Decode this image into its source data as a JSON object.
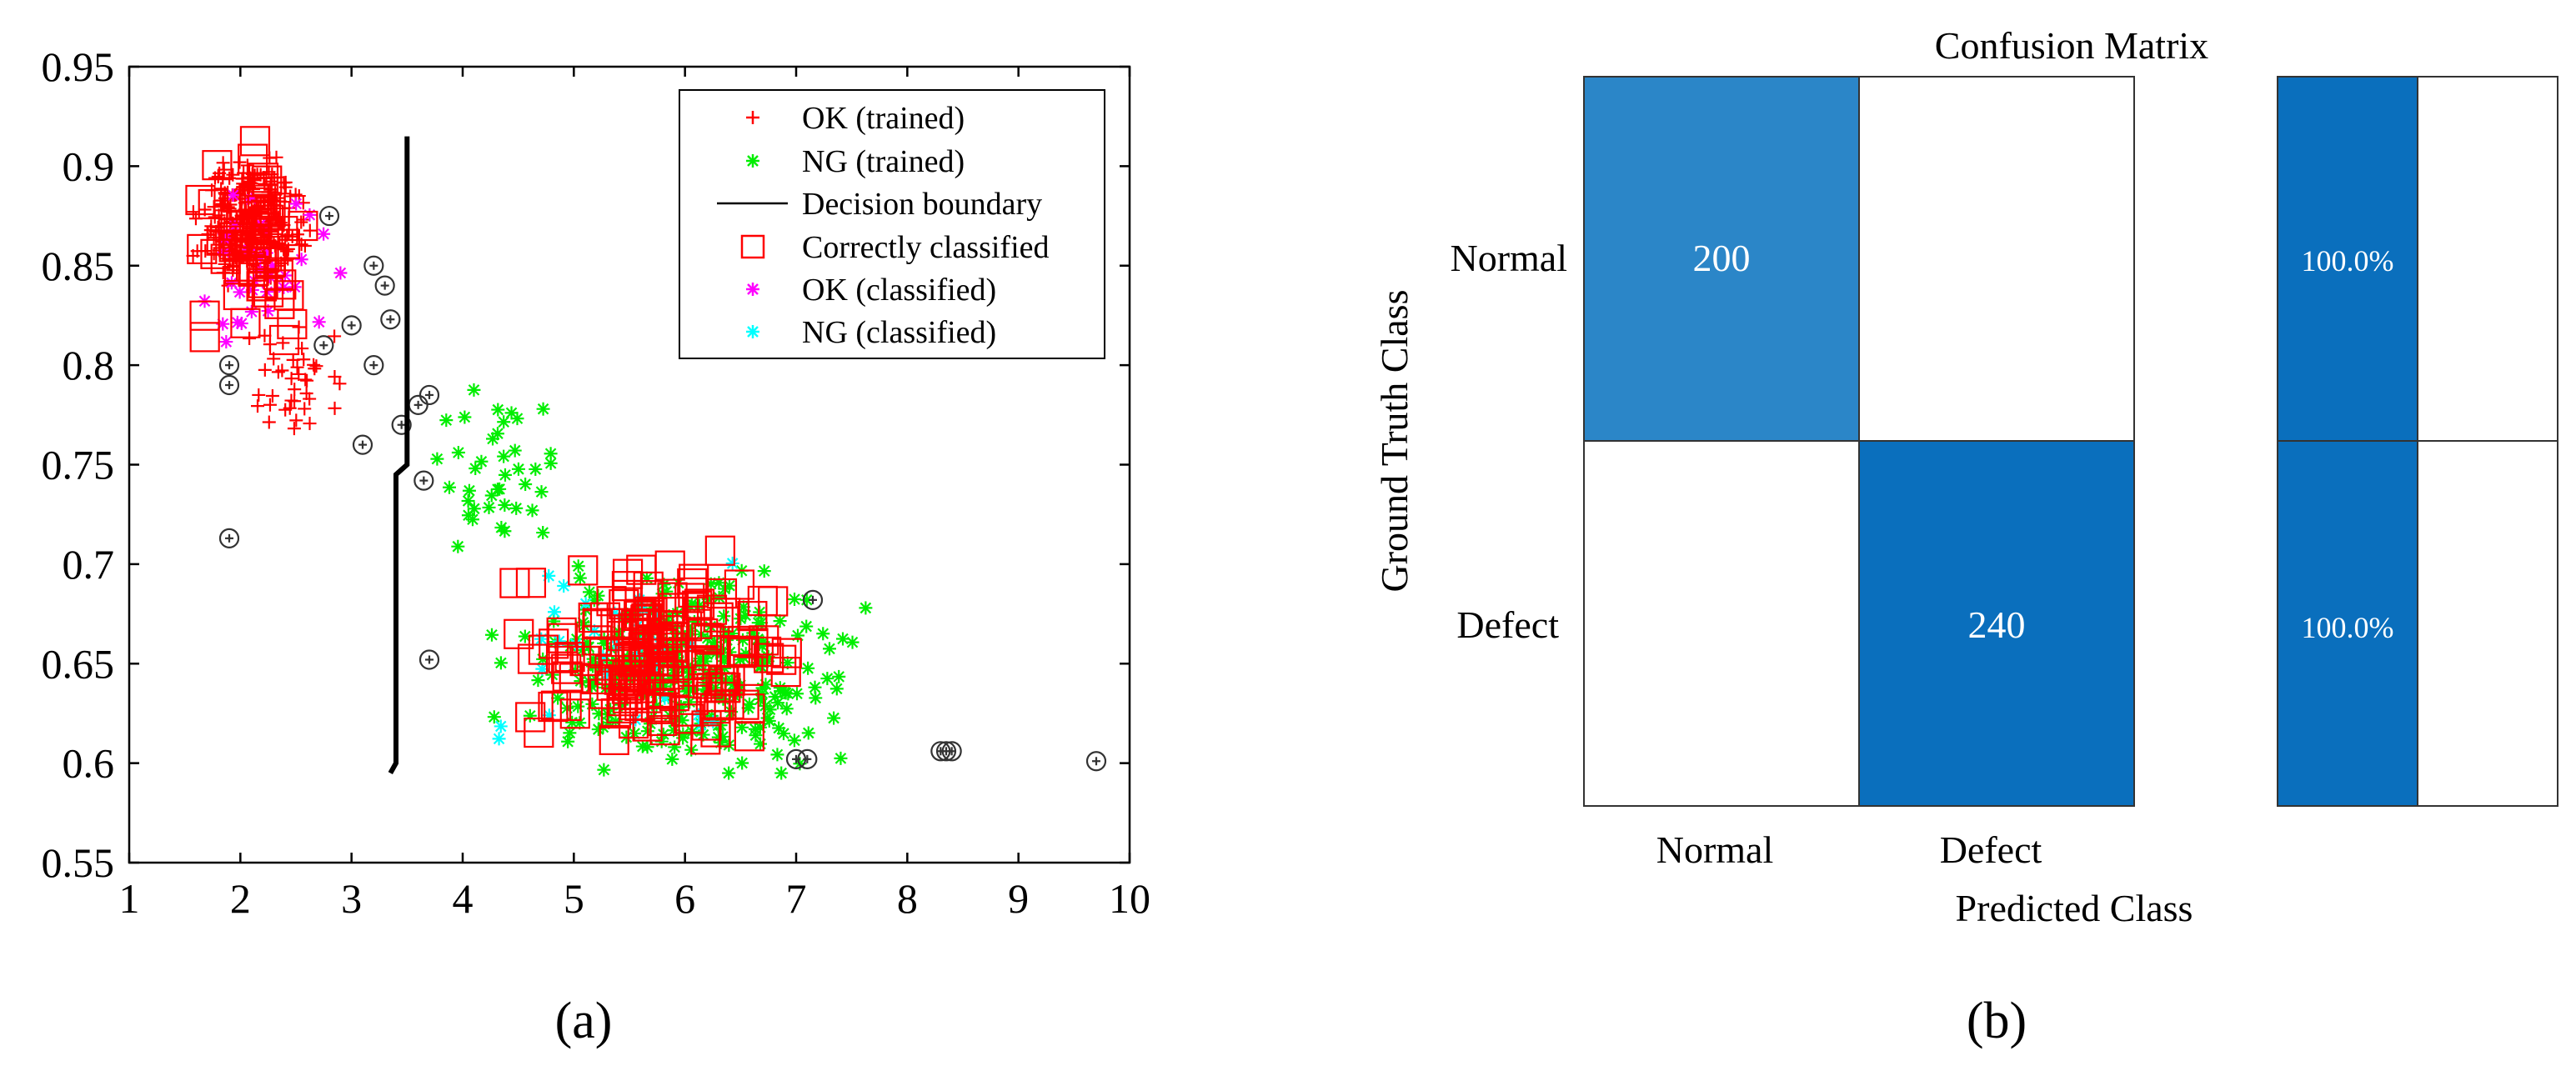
{
  "chart_data": [
    {
      "type": "scatter",
      "panel_label": "(a)",
      "xlim": [
        1,
        10
      ],
      "ylim": [
        0.55,
        0.95
      ],
      "x_ticks": [
        "1",
        "2",
        "3",
        "4",
        "5",
        "6",
        "7",
        "8",
        "9",
        "10"
      ],
      "y_ticks": [
        "0.55",
        "0.6",
        "0.65",
        "0.7",
        "0.75",
        "0.8",
        "0.85",
        "0.9",
        "0.95"
      ],
      "legend": [
        {
          "label": "OK (trained)",
          "marker": "plus",
          "color": "#ff0000"
        },
        {
          "label": "NG (trained)",
          "marker": "star",
          "color": "#00ee00"
        },
        {
          "label": "Decision boundary",
          "marker": "line",
          "color": "#000000"
        },
        {
          "label": "Correctly classified",
          "marker": "square",
          "color": "#ff0000"
        },
        {
          "label": "OK (classified)",
          "marker": "star",
          "color": "#ff00ff"
        },
        {
          "label": "NG (classified)",
          "marker": "star",
          "color": "#00ffff"
        }
      ],
      "clusters": [
        {
          "name": "OK (trained)",
          "center": [
            2.1,
            0.875
          ],
          "spread": [
            0.35,
            0.025
          ],
          "count": 230
        },
        {
          "name": "OK (trained)",
          "center": [
            2.5,
            0.79
          ],
          "spread": [
            0.35,
            0.025
          ],
          "count": 40
        },
        {
          "name": "NG (trained)",
          "center": [
            6.0,
            0.645
          ],
          "spread": [
            1.1,
            0.035
          ],
          "count": 320
        },
        {
          "name": "NG (trained)",
          "center": [
            4.3,
            0.74
          ],
          "spread": [
            0.45,
            0.04
          ],
          "count": 40
        },
        {
          "name": "Correctly classified (OK)",
          "center": [
            2.1,
            0.86
          ],
          "spread": [
            0.4,
            0.03
          ],
          "count": 60
        },
        {
          "name": "Correctly classified (NG)",
          "center": [
            5.8,
            0.655
          ],
          "spread": [
            0.9,
            0.035
          ],
          "count": 180
        },
        {
          "name": "OK (classified)",
          "center": [
            2.2,
            0.85
          ],
          "spread": [
            0.45,
            0.035
          ],
          "count": 35
        },
        {
          "name": "NG (classified)",
          "center": [
            5.5,
            0.66
          ],
          "spread": [
            1.1,
            0.04
          ],
          "count": 35
        }
      ],
      "misclassified_circles": [
        [
          1.9,
          0.713
        ],
        [
          1.9,
          0.79
        ],
        [
          1.9,
          0.8
        ],
        [
          2.8,
          0.875
        ],
        [
          2.75,
          0.81
        ],
        [
          3.0,
          0.82
        ],
        [
          3.1,
          0.76
        ],
        [
          3.2,
          0.85
        ],
        [
          3.3,
          0.84
        ],
        [
          3.35,
          0.823
        ],
        [
          3.2,
          0.8
        ],
        [
          3.45,
          0.77
        ],
        [
          3.6,
          0.78
        ],
        [
          3.7,
          0.785
        ],
        [
          3.65,
          0.742
        ],
        [
          3.7,
          0.652
        ],
        [
          7.0,
          0.602
        ],
        [
          7.1,
          0.602
        ],
        [
          7.15,
          0.682
        ],
        [
          8.3,
          0.606
        ],
        [
          8.35,
          0.606
        ],
        [
          8.4,
          0.606
        ],
        [
          9.7,
          0.601
        ]
      ],
      "decision_boundary": [
        [
          3.5,
          0.915
        ],
        [
          3.5,
          0.75
        ],
        [
          3.4,
          0.745
        ],
        [
          3.4,
          0.6
        ],
        [
          3.35,
          0.595
        ]
      ]
    },
    {
      "type": "table",
      "panel_label": "(b)",
      "title": "Confusion Matrix",
      "ylabel": "Ground Truth Class",
      "xlabel": "Predicted Class",
      "row_labels": [
        "Normal",
        "Defect"
      ],
      "col_labels": [
        "Normal",
        "Defect"
      ],
      "matrix": [
        [
          200,
          0
        ],
        [
          0,
          240
        ]
      ],
      "cell_text": [
        [
          "200",
          ""
        ],
        [
          "",
          "240"
        ]
      ],
      "row_percentages": [
        "100.0%",
        "100.0%"
      ],
      "colors": {
        "diag_normal": "#2b86c8",
        "diag_defect": "#0a6fbd",
        "pct": "#0a6fbd"
      }
    }
  ]
}
